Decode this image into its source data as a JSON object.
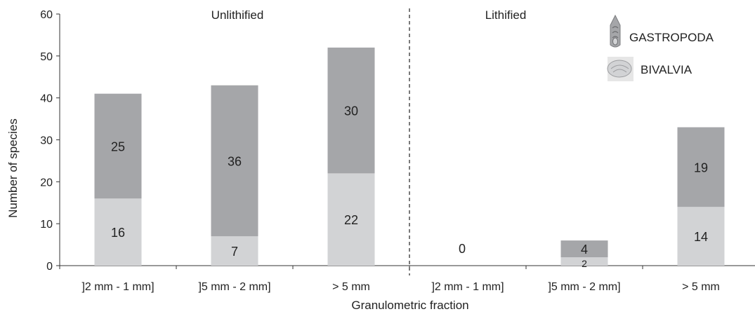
{
  "chart_data": {
    "type": "bar",
    "stacked": true,
    "title": "",
    "xlabel": "Granulometric fraction",
    "ylabel": "Number of species",
    "ylim": [
      0,
      60
    ],
    "yticks": [
      0,
      10,
      20,
      30,
      40,
      50,
      60
    ],
    "grid": false,
    "legend_position": "top-right",
    "groups": [
      {
        "label": "Unlithified",
        "categories": [
          "]2 mm - 1 mm]",
          "]5 mm - 2 mm]",
          "> 5 mm"
        ]
      },
      {
        "label": "Lithified",
        "categories": [
          "]2 mm - 1 mm]",
          "]5 mm - 2 mm]",
          "> 5 mm"
        ]
      }
    ],
    "categories": [
      "]2 mm - 1 mm]",
      "]5 mm - 2 mm]",
      "> 5 mm",
      "]2 mm - 1 mm]",
      "]5 mm - 2 mm]",
      "> 5 mm"
    ],
    "series": [
      {
        "name": "BIVALVIA",
        "color": "#d2d3d5",
        "values": [
          16,
          7,
          22,
          0,
          2,
          14
        ]
      },
      {
        "name": "GASTROPODA",
        "color": "#a5a6a9",
        "values": [
          25,
          36,
          30,
          0,
          4,
          19
        ]
      }
    ],
    "annotations": [
      "0"
    ],
    "legend": [
      {
        "name": "GASTROPODA",
        "icon": "gastropod-shell-icon"
      },
      {
        "name": "BIVALVIA",
        "icon": "bivalve-shell-icon"
      }
    ]
  }
}
